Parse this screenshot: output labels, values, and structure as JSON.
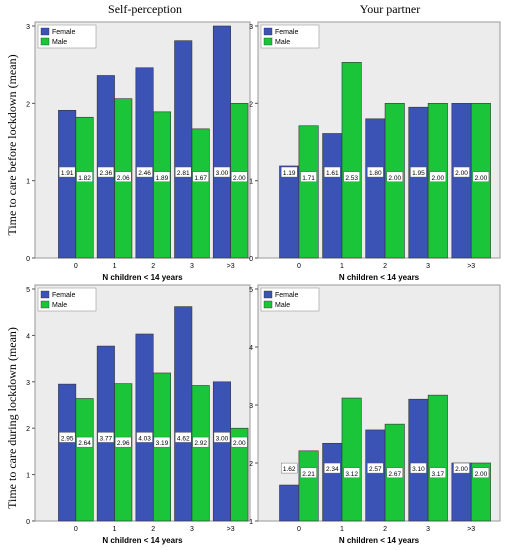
{
  "figure": {
    "col_titles": [
      "Self-perception",
      "Your partner"
    ],
    "row_ylabels": [
      "Time to care before lockdown (mean)",
      "Time to care during lockdown (mean)"
    ]
  },
  "colors": {
    "female": "#3a53b4",
    "male": "#1ac53a",
    "panel_bg": "#ececec"
  },
  "chart_data": [
    {
      "type": "bar",
      "panel": "top-left",
      "title": "Self-perception",
      "xlabel": "N children < 14 years",
      "ylabel": "Time to care before lockdown (mean)",
      "categories": [
        "0",
        "1",
        "2",
        "3",
        ">3"
      ],
      "ylim": [
        0,
        3
      ],
      "yticks": [
        0,
        1,
        2,
        3
      ],
      "legend": "top-left",
      "series": [
        {
          "name": "Female",
          "values": [
            1.91,
            2.36,
            2.46,
            2.81,
            3.0
          ],
          "labels": [
            "1.91",
            "2.36",
            "2.46",
            "2.81",
            "3.00"
          ]
        },
        {
          "name": "Male",
          "values": [
            1.82,
            2.06,
            1.89,
            1.67,
            2.0
          ],
          "labels": [
            "1.82",
            "2.06",
            "1.89",
            "1.67",
            "2.00"
          ]
        }
      ]
    },
    {
      "type": "bar",
      "panel": "top-right",
      "title": "Your partner",
      "xlabel": "N children < 14 years",
      "ylabel": "",
      "categories": [
        "0",
        "1",
        "2",
        "3",
        ">3"
      ],
      "ylim": [
        0,
        3
      ],
      "yticks": [
        0,
        1,
        2,
        3
      ],
      "legend": "top-left",
      "series": [
        {
          "name": "Female",
          "values": [
            1.19,
            1.61,
            1.8,
            1.95,
            2.0
          ],
          "labels": [
            "1.19",
            "1.61",
            "1.80",
            "1.95",
            "2.00"
          ]
        },
        {
          "name": "Male",
          "values": [
            1.71,
            2.53,
            2.0,
            2.0,
            2.0
          ],
          "labels": [
            "1.71",
            "2.53",
            "2.00",
            "2.00",
            "2.00"
          ]
        }
      ]
    },
    {
      "type": "bar",
      "panel": "bottom-left",
      "title": "",
      "xlabel": "N children < 14 years",
      "ylabel": "Time to care during lockdown (mean)",
      "categories": [
        "0",
        "1",
        "2",
        "3",
        ">3"
      ],
      "ylim": [
        0,
        5
      ],
      "yticks": [
        0,
        1,
        2,
        3,
        4,
        5
      ],
      "legend": "top-left",
      "series": [
        {
          "name": "Female",
          "values": [
            2.95,
            3.77,
            4.03,
            4.62,
            3.0
          ],
          "labels": [
            "2.95",
            "3.77",
            "4.03",
            "4.62",
            "3.00"
          ]
        },
        {
          "name": "Male",
          "values": [
            2.64,
            2.96,
            3.19,
            2.92,
            2.0
          ],
          "labels": [
            "2.64",
            "2.96",
            "3.19",
            "2.92",
            "2.00"
          ]
        }
      ]
    },
    {
      "type": "bar",
      "panel": "bottom-right",
      "title": "",
      "xlabel": "N children < 14 years",
      "ylabel": "",
      "categories": [
        "0",
        "1",
        "2",
        "3",
        ">3"
      ],
      "ylim": [
        1,
        5
      ],
      "yticks": [
        1,
        2,
        3,
        4,
        5
      ],
      "legend": "top-left",
      "series": [
        {
          "name": "Female",
          "values": [
            1.62,
            2.34,
            2.57,
            3.1,
            2.0
          ],
          "labels": [
            "1.62",
            "2.34",
            "2.57",
            "3.10",
            "2.00"
          ]
        },
        {
          "name": "Male",
          "values": [
            2.21,
            3.12,
            2.67,
            3.17,
            2.0
          ],
          "labels": [
            "2.21",
            "3.12",
            "2.67",
            "3.17",
            "2.00"
          ]
        }
      ]
    }
  ]
}
